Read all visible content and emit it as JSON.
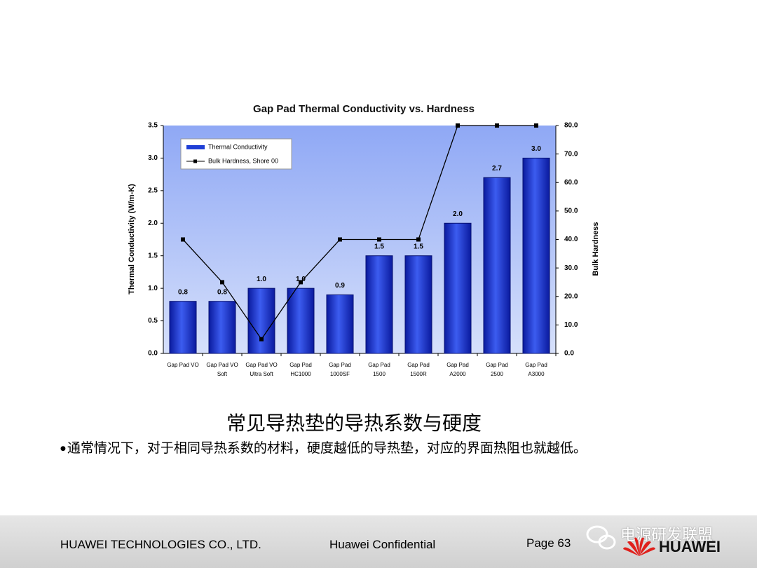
{
  "chart_data": {
    "type": "bar_line",
    "title": "Gap Pad Thermal Conductivity vs. Hardness",
    "y_label": "Thermal Conductivity (W/m-K)",
    "y2_label": "Bulk Hardness",
    "categories": [
      "Gap Pad VO",
      "Gap Pad VO\nSoft",
      "Gap Pad VO\nUltra Soft",
      "Gap Pad\nHC1000",
      "Gap Pad\n1000SF",
      "Gap Pad\n1500",
      "Gap Pad\n1500R",
      "Gap Pad\nA2000",
      "Gap Pad\n2500",
      "Gap Pad\nA3000"
    ],
    "series": [
      {
        "name": "Thermal Conductivity",
        "color": "#1f3fd6",
        "values": [
          0.8,
          0.8,
          1.0,
          1.0,
          0.9,
          1.5,
          1.5,
          2.0,
          2.7,
          3.0
        ],
        "value_labels": [
          "0.8",
          "0.8",
          "1.0",
          "1.0",
          "0.9",
          "1.5",
          "1.5",
          "2.0",
          "2.7",
          "3.0"
        ]
      },
      {
        "name": "Bulk Hardness, Shore 00",
        "color": "#000000",
        "axis": "y2",
        "values": [
          40,
          25,
          5,
          25,
          40,
          40,
          40,
          80,
          80,
          80
        ]
      }
    ],
    "ylim": [
      0,
      3.5
    ],
    "yticks": [
      {
        "value": 0,
        "label": "0.0"
      },
      {
        "value": 0.5,
        "label": "0.5"
      },
      {
        "value": 1,
        "label": "1.0"
      },
      {
        "value": 1.5,
        "label": "1.5"
      },
      {
        "value": 2,
        "label": "2.0"
      },
      {
        "value": 2.5,
        "label": "2.5"
      },
      {
        "value": 3,
        "label": "3.0"
      },
      {
        "value": 3.5,
        "label": "3.5"
      }
    ],
    "y2lim": [
      0,
      80
    ],
    "y2ticks": [
      {
        "value": 0,
        "label": "0.0"
      },
      {
        "value": 10,
        "label": "10.0"
      },
      {
        "value": 20,
        "label": "20.0"
      },
      {
        "value": 30,
        "label": "30.0"
      },
      {
        "value": 40,
        "label": "40.0"
      },
      {
        "value": 50,
        "label": "50.0"
      },
      {
        "value": 60,
        "label": "60.0"
      },
      {
        "value": 70,
        "label": "70.0"
      },
      {
        "value": 80,
        "label": "80.0"
      }
    ],
    "grid": false,
    "legend": "upper-left"
  },
  "slide": {
    "caption": "常见导热垫的导热系数与硬度",
    "bullet": "通常情况下，对于相同导热系数的材料，硬度越低的导热垫，对应的界面热阻也就越低。",
    "footer_company": "HUAWEI TECHNOLOGIES CO., LTD.",
    "footer_confidential": "Huawei Confidential",
    "footer_page": "Page 63",
    "logo": "HUAWEI",
    "watermark": "电源研发联盟"
  }
}
